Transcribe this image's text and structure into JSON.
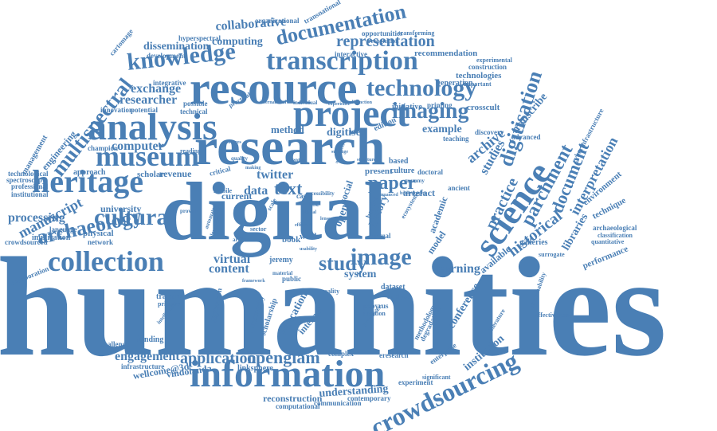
{
  "colors": {
    "word": "#4a7fb5",
    "background": "#ffffff"
  },
  "words": [
    "humanities",
    "digital",
    "research",
    "resource",
    "project",
    "analysis",
    "transcription",
    "heritage",
    "information",
    "collection",
    "science",
    "knowledge",
    "museum",
    "technology",
    "documentation",
    "imaging",
    "image",
    "crowdsourcing",
    "cultural",
    "archaeology",
    "digitisation",
    "multispectral",
    "parchment",
    "document",
    "historical",
    "interpretation",
    "text",
    "twitter",
    "data",
    "paper",
    "study",
    "practice",
    "openglam",
    "application",
    "engagement",
    "representation",
    "manuscript",
    "archive",
    "content",
    "virtual",
    "researcher",
    "exchange",
    "computer",
    "processing",
    "libraries",
    "collaborative",
    "computing",
    "dissemination",
    "studies",
    "learning",
    "understanding",
    "conference",
    "history",
    "artefact",
    "social",
    "system",
    "education",
    "internet",
    "institution",
    "experiment",
    "reconstruction",
    "communication",
    "computational",
    "contemporary",
    "linksphere",
    "vindolanda",
    "wellcome@3d",
    "infrastructure",
    "funding",
    "challenge",
    "crowdsourced",
    "collaboration",
    "network",
    "implication",
    "language",
    "university",
    "physical",
    "revenue",
    "scholar",
    "approach",
    "engineering",
    "management",
    "spectroscopy",
    "professional",
    "technological",
    "institutional",
    "champion",
    "innovation",
    "potential",
    "integrative",
    "development",
    "cartomage",
    "hyperspectral",
    "organizational",
    "transnational",
    "opportunities",
    "recognition",
    "transforming",
    "interactive",
    "recommendation",
    "experimental",
    "construction",
    "technologies",
    "generation",
    "important",
    "transcribe",
    "discovery",
    "teaching",
    "advanced",
    "cyberinfrastructure",
    "environment",
    "technique",
    "archaeological",
    "classification",
    "quantitative",
    "performance",
    "surrogate",
    "galleries",
    "available",
    "effectiveness",
    "sustainability",
    "ancient",
    "culture",
    "doctoral",
    "present",
    "based",
    "example",
    "crosscult",
    "initiative",
    "printing",
    "digitised",
    "edition",
    "method",
    "current",
    "critical",
    "jeremy",
    "model",
    "academic",
    "open",
    "book",
    "work",
    "public",
    "reality",
    "dataset",
    "analyse",
    "papyrus",
    "creation",
    "processes",
    "methodology",
    "degradation",
    "eresearch",
    "enterprise",
    "significant",
    "literature",
    "complex",
    "scholarship",
    "community",
    "digitization",
    "training",
    "primary",
    "intelligence",
    "reading",
    "technical",
    "possible",
    "practical",
    "international",
    "individual",
    "experience",
    "distinction",
    "mobile",
    "textual",
    "barrier",
    "ecosystem",
    "material",
    "framework",
    "alexandria",
    "artificial",
    "provide",
    "markup",
    "automated",
    "sector",
    "scale",
    "suffrage",
    "structure",
    "mummy",
    "centre",
    "quality",
    "making",
    "usefulness",
    "accessibility",
    "case",
    "use",
    "ethical",
    "lenses",
    "efficient",
    "usability",
    "bibliography",
    "nuanced",
    "sources"
  ]
}
